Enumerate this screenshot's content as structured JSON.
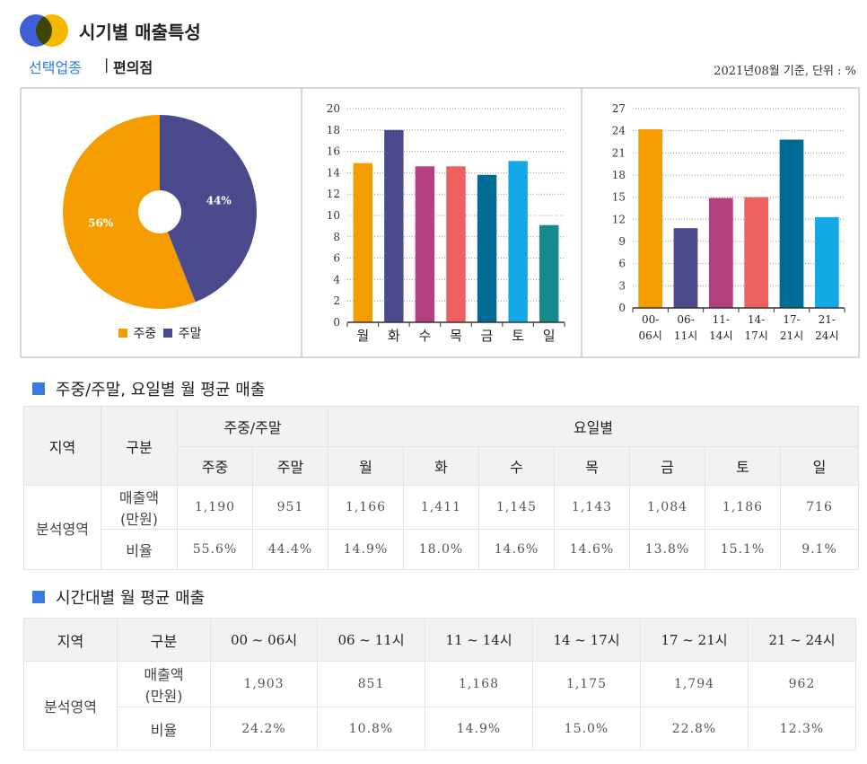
{
  "header": {
    "title": "시기별 매출특성"
  },
  "selection": {
    "label": "선택업종",
    "separator": "|",
    "value": "편의점",
    "basis": "2021년08월 기준, 단위 : %"
  },
  "chart_data": [
    {
      "type": "pie",
      "labels": [
        "주중",
        "주말"
      ],
      "values": [
        56,
        44
      ],
      "value_labels": [
        "56%",
        "44%"
      ],
      "colors": [
        "#f59c00",
        "#4b4a8c"
      ],
      "donut_hole": true,
      "legend": "bottom"
    },
    {
      "type": "bar",
      "categories": [
        "월",
        "화",
        "수",
        "목",
        "금",
        "토",
        "일"
      ],
      "values": [
        14.9,
        18.0,
        14.6,
        14.6,
        13.8,
        15.1,
        9.1
      ],
      "colors": [
        "#f59c00",
        "#4b4a8c",
        "#b5407f",
        "#ee6160",
        "#006b93",
        "#14a9e6",
        "#168a8d"
      ],
      "ylim": [
        0,
        20
      ],
      "yticks": [
        0,
        2,
        4,
        6,
        8,
        10,
        12,
        14,
        16,
        18,
        20
      ],
      "grid": true
    },
    {
      "type": "bar",
      "categories": [
        [
          "00-",
          "06시"
        ],
        [
          "06-",
          "11시"
        ],
        [
          "11-",
          "14시"
        ],
        [
          "14-",
          "17시"
        ],
        [
          "17-",
          "21시"
        ],
        [
          "21-",
          "24시"
        ]
      ],
      "values": [
        24.2,
        10.8,
        14.9,
        15.0,
        22.8,
        12.3
      ],
      "colors": [
        "#f59c00",
        "#4b4a8c",
        "#b5407f",
        "#ee6160",
        "#006b93",
        "#14a9e6"
      ],
      "ylim": [
        0,
        27
      ],
      "yticks": [
        0,
        3,
        6,
        9,
        12,
        15,
        18,
        21,
        24,
        27
      ],
      "grid": true
    }
  ],
  "table1": {
    "title": "주중/주말, 요일별 월 평균 매출",
    "headers": {
      "region": "지역",
      "category": "구분",
      "weekgroup": "주중/주말",
      "daygroup": "요일별",
      "weekday": "주중",
      "weekend": "주말",
      "days": [
        "월",
        "화",
        "수",
        "목",
        "금",
        "토",
        "일"
      ]
    },
    "region": "분석영역",
    "rows": [
      {
        "label": [
          "매출액",
          "(만원)"
        ],
        "values": [
          "1,190",
          "951",
          "1,166",
          "1,411",
          "1,145",
          "1,143",
          "1,084",
          "1,186",
          "716"
        ]
      },
      {
        "label": [
          "비율"
        ],
        "values": [
          "55.6%",
          "44.4%",
          "14.9%",
          "18.0%",
          "14.6%",
          "14.6%",
          "13.8%",
          "15.1%",
          "9.1%"
        ]
      }
    ]
  },
  "table2": {
    "title": "시간대별 월 평균 매출",
    "headers": {
      "region": "지역",
      "category": "구분",
      "slots": [
        "00 ~ 06시",
        "06 ~ 11시",
        "11 ~ 14시",
        "14 ~ 17시",
        "17 ~ 21시",
        "21 ~ 24시"
      ]
    },
    "region": "분석영역",
    "rows": [
      {
        "label": [
          "매출액",
          "(만원)"
        ],
        "values": [
          "1,903",
          "851",
          "1,168",
          "1,175",
          "1,794",
          "962"
        ]
      },
      {
        "label": [
          "비율"
        ],
        "values": [
          "24.2%",
          "10.8%",
          "14.9%",
          "15.0%",
          "22.8%",
          "12.3%"
        ]
      }
    ]
  }
}
